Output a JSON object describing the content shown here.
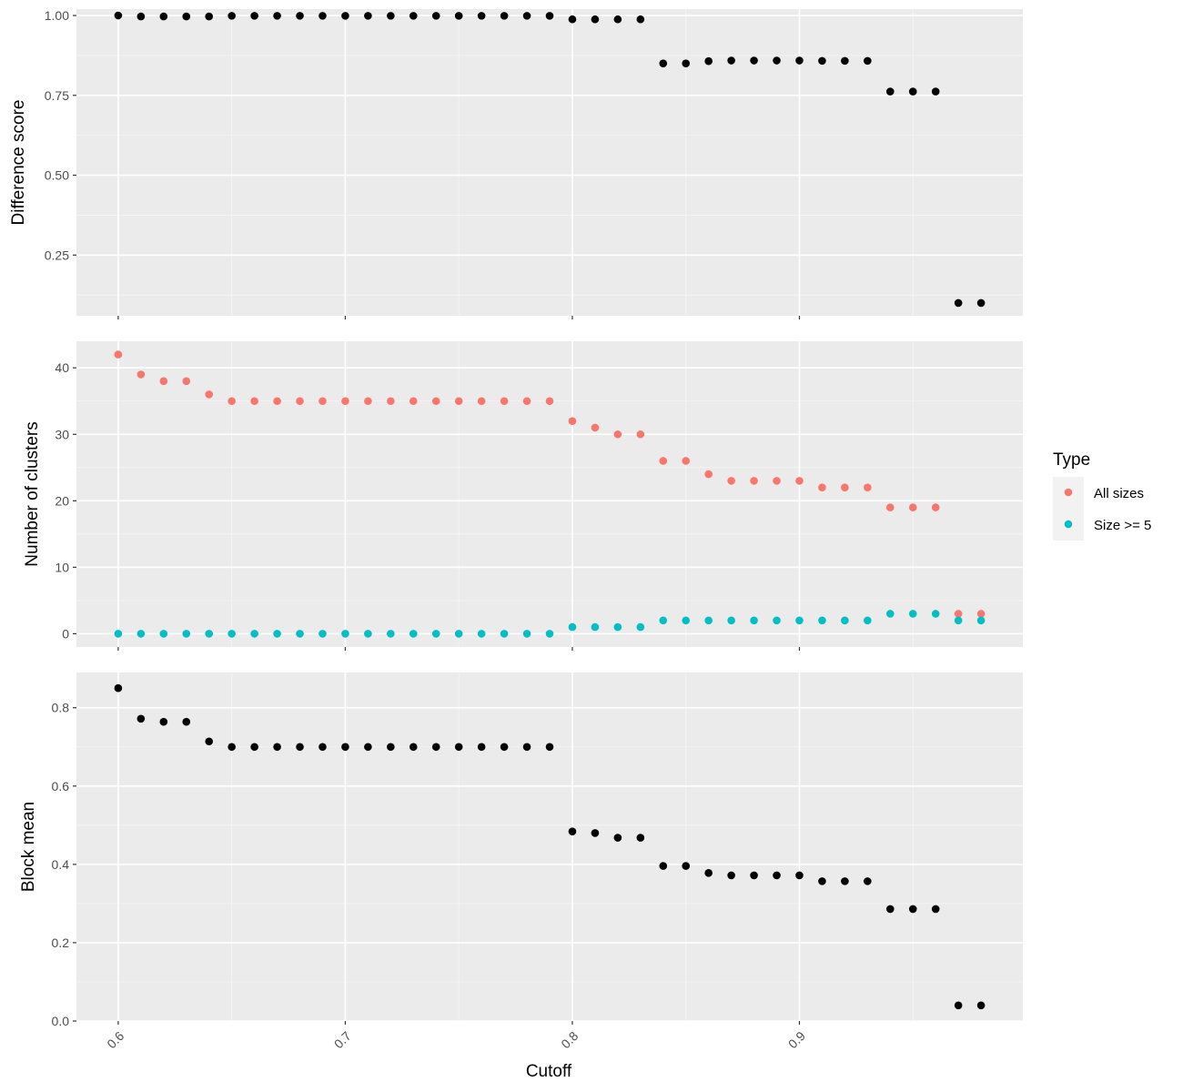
{
  "chart_data": [
    {
      "type": "scatter",
      "ylabel": "Difference score",
      "ylim": [
        0.06,
        1.02
      ],
      "yticks": [
        0.25,
        0.5,
        0.75,
        1.0
      ],
      "ytick_labels": [
        "0.25",
        "0.50",
        "0.75",
        "1.00"
      ],
      "grid": true,
      "series": [
        {
          "color": "#000000",
          "x": [
            0.6,
            0.61,
            0.62,
            0.63,
            0.64,
            0.65,
            0.66,
            0.67,
            0.68,
            0.69,
            0.7,
            0.71,
            0.72,
            0.73,
            0.74,
            0.75,
            0.76,
            0.77,
            0.78,
            0.79,
            0.8,
            0.81,
            0.82,
            0.83,
            0.84,
            0.85,
            0.86,
            0.87,
            0.88,
            0.89,
            0.9,
            0.91,
            0.92,
            0.93,
            0.94,
            0.95,
            0.96,
            0.97,
            0.98
          ],
          "y": [
            1.0,
            0.997,
            0.997,
            0.997,
            0.997,
            0.999,
            0.999,
            0.999,
            0.999,
            0.999,
            0.999,
            0.999,
            0.999,
            0.999,
            0.999,
            0.999,
            0.999,
            0.999,
            0.999,
            0.999,
            0.988,
            0.988,
            0.988,
            0.988,
            0.85,
            0.85,
            0.857,
            0.859,
            0.859,
            0.859,
            0.859,
            0.858,
            0.858,
            0.858,
            0.762,
            0.762,
            0.762,
            0.1,
            0.1
          ]
        }
      ]
    },
    {
      "type": "scatter",
      "ylabel": "Number of clusters",
      "ylim": [
        -2,
        44
      ],
      "yticks": [
        0,
        10,
        20,
        30,
        40
      ],
      "ytick_labels": [
        "0",
        "10",
        "20",
        "30",
        "40"
      ],
      "grid": true,
      "legend_title": "Type",
      "series": [
        {
          "name": "All sizes",
          "color": "#F8766D",
          "x": [
            0.6,
            0.61,
            0.62,
            0.63,
            0.64,
            0.65,
            0.66,
            0.67,
            0.68,
            0.69,
            0.7,
            0.71,
            0.72,
            0.73,
            0.74,
            0.75,
            0.76,
            0.77,
            0.78,
            0.79,
            0.8,
            0.81,
            0.82,
            0.83,
            0.84,
            0.85,
            0.86,
            0.87,
            0.88,
            0.89,
            0.9,
            0.91,
            0.92,
            0.93,
            0.94,
            0.95,
            0.96,
            0.97,
            0.98
          ],
          "y": [
            42,
            39,
            38,
            38,
            36,
            35,
            35,
            35,
            35,
            35,
            35,
            35,
            35,
            35,
            35,
            35,
            35,
            35,
            35,
            35,
            32,
            31,
            30,
            30,
            26,
            26,
            24,
            23,
            23,
            23,
            23,
            22,
            22,
            22,
            19,
            19,
            19,
            3,
            3
          ]
        },
        {
          "name": "Size >= 5",
          "color": "#00BFC4",
          "x": [
            0.6,
            0.61,
            0.62,
            0.63,
            0.64,
            0.65,
            0.66,
            0.67,
            0.68,
            0.69,
            0.7,
            0.71,
            0.72,
            0.73,
            0.74,
            0.75,
            0.76,
            0.77,
            0.78,
            0.79,
            0.8,
            0.81,
            0.82,
            0.83,
            0.84,
            0.85,
            0.86,
            0.87,
            0.88,
            0.89,
            0.9,
            0.91,
            0.92,
            0.93,
            0.94,
            0.95,
            0.96,
            0.97,
            0.98
          ],
          "y": [
            0,
            0,
            0,
            0,
            0,
            0,
            0,
            0,
            0,
            0,
            0,
            0,
            0,
            0,
            0,
            0,
            0,
            0,
            0,
            0,
            1,
            1,
            1,
            1,
            2,
            2,
            2,
            2,
            2,
            2,
            2,
            2,
            2,
            2,
            3,
            3,
            3,
            2,
            2
          ]
        }
      ]
    },
    {
      "type": "scatter",
      "ylabel": "Block mean",
      "xlabel": "Cutoff",
      "ylim": [
        0.0,
        0.89
      ],
      "yticks": [
        0.0,
        0.2,
        0.4,
        0.6,
        0.8
      ],
      "ytick_labels": [
        "0.0",
        "0.2",
        "0.4",
        "0.6",
        "0.8"
      ],
      "grid": true,
      "series": [
        {
          "color": "#000000",
          "x": [
            0.6,
            0.61,
            0.62,
            0.63,
            0.64,
            0.65,
            0.66,
            0.67,
            0.68,
            0.69,
            0.7,
            0.71,
            0.72,
            0.73,
            0.74,
            0.75,
            0.76,
            0.77,
            0.78,
            0.79,
            0.8,
            0.81,
            0.82,
            0.83,
            0.84,
            0.85,
            0.86,
            0.87,
            0.88,
            0.89,
            0.9,
            0.91,
            0.92,
            0.93,
            0.94,
            0.95,
            0.96,
            0.97,
            0.98
          ],
          "y": [
            0.85,
            0.772,
            0.764,
            0.764,
            0.714,
            0.7,
            0.7,
            0.7,
            0.7,
            0.7,
            0.7,
            0.7,
            0.7,
            0.7,
            0.7,
            0.7,
            0.7,
            0.7,
            0.7,
            0.7,
            0.484,
            0.48,
            0.468,
            0.468,
            0.396,
            0.396,
            0.378,
            0.372,
            0.372,
            0.372,
            0.372,
            0.357,
            0.357,
            0.357,
            0.286,
            0.286,
            0.286,
            0.04,
            0.04
          ]
        }
      ]
    }
  ],
  "xaxis": {
    "label": "Cutoff",
    "lim": [
      0.5816,
      0.9984
    ],
    "ticks": [
      0.6,
      0.7,
      0.8,
      0.9
    ],
    "tick_labels": [
      "0.6",
      "0.7",
      "0.8",
      "0.9"
    ]
  },
  "legend": {
    "title": "Type",
    "placement": "right",
    "items": [
      {
        "label": "All sizes",
        "color": "#F8766D"
      },
      {
        "label": "Size >= 5",
        "color": "#00BFC4"
      }
    ]
  },
  "colors": {
    "panel_background": "#EBEBEB",
    "grid_major": "#FFFFFF",
    "grid_minor": "#F5F5F5",
    "tick": "#333333"
  }
}
